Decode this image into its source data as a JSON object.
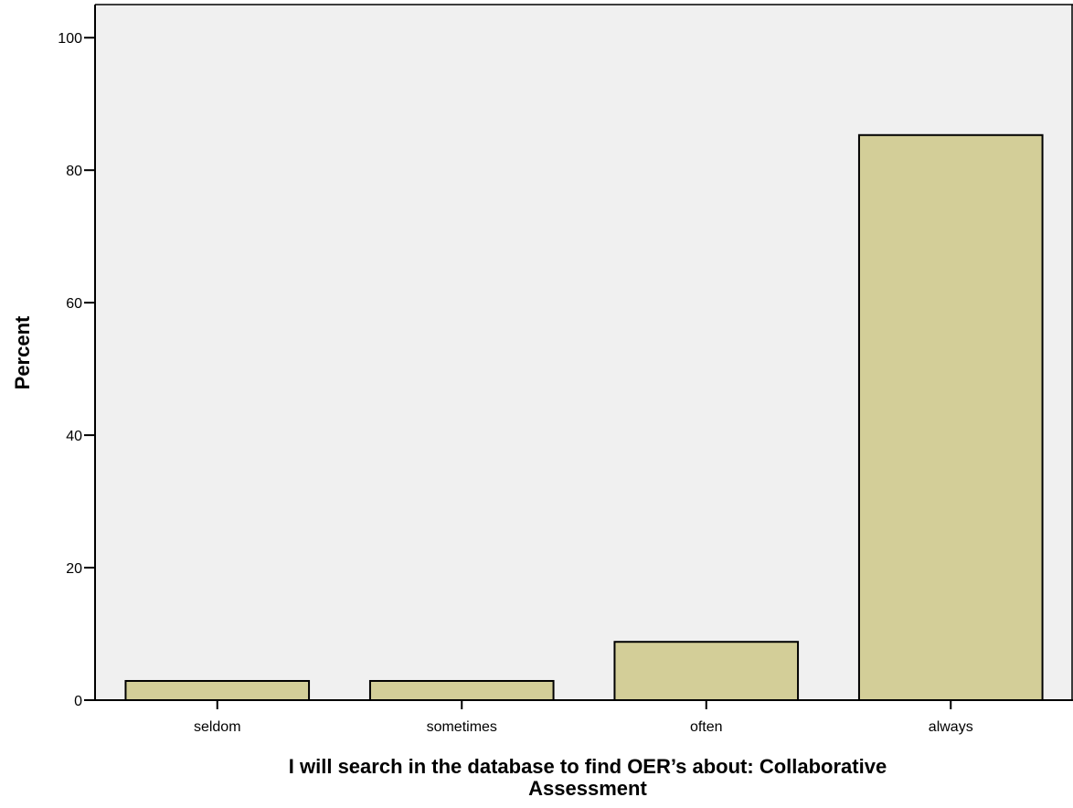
{
  "chart_data": {
    "type": "bar",
    "categories": [
      "seldom",
      "sometimes",
      "often",
      "always"
    ],
    "values": [
      2.9,
      2.9,
      8.8,
      85.3
    ],
    "xlabel_lines": [
      "I will search in the database to find OER’s about: Collaborative",
      "Assessment"
    ],
    "ylabel": "Percent",
    "ylim": [
      0,
      105
    ],
    "yticks": [
      0,
      20,
      40,
      60,
      80,
      100
    ],
    "grid": false,
    "legend": "none",
    "colors": {
      "plot_bg": "#f0f0f0",
      "bar_fill": "#d3ce98",
      "bar_stroke": "#000000"
    }
  }
}
